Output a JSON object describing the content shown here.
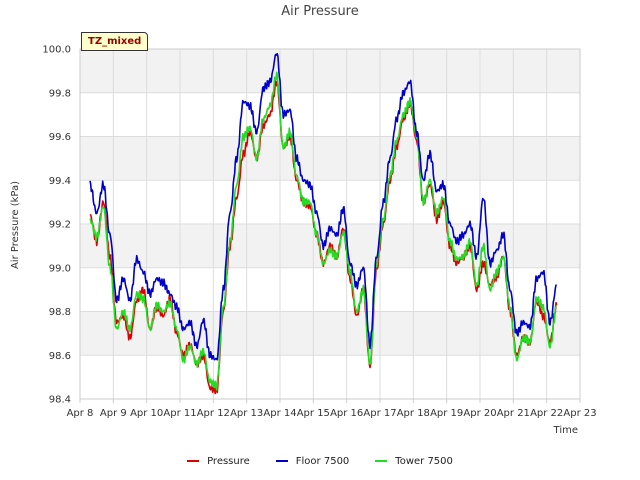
{
  "chart_data": {
    "type": "line",
    "title": "Air Pressure",
    "xlabel": "Time",
    "ylabel": "Air Pressure (kPa)",
    "ylim": [
      98.4,
      100.0
    ],
    "xlim": [
      8.0,
      23.0
    ],
    "x_ticks": [
      8,
      9,
      10,
      11,
      12,
      13,
      14,
      15,
      16,
      17,
      18,
      19,
      20,
      21,
      22,
      23
    ],
    "x_tick_labels": [
      "Apr 8",
      "Apr 9",
      "Apr 10",
      "Apr 11",
      "Apr 12",
      "Apr 13",
      "Apr 14",
      "Apr 15",
      "Apr 16",
      "Apr 17",
      "Apr 18",
      "Apr 19",
      "Apr 20",
      "Apr 21",
      "Apr 22",
      "Apr 23"
    ],
    "y_ticks": [
      98.4,
      98.6,
      98.8,
      99.0,
      99.2,
      99.4,
      99.6,
      99.8,
      100.0
    ],
    "y_tick_labels": [
      "98.4",
      "98.6",
      "98.8",
      "99.0",
      "99.2",
      "99.4",
      "99.6",
      "99.8",
      "100.0"
    ],
    "grid": true,
    "legend_position": "bottom-center",
    "annotation": "TZ_mixed",
    "x": [
      8.3,
      8.5,
      8.7,
      8.9,
      9.1,
      9.3,
      9.5,
      9.7,
      9.9,
      10.1,
      10.3,
      10.5,
      10.7,
      10.9,
      11.1,
      11.3,
      11.5,
      11.7,
      11.9,
      12.1,
      12.3,
      12.5,
      12.7,
      12.9,
      13.1,
      13.3,
      13.5,
      13.7,
      13.9,
      14.1,
      14.3,
      14.5,
      14.7,
      14.9,
      15.1,
      15.3,
      15.5,
      15.7,
      15.9,
      16.1,
      16.3,
      16.5,
      16.7,
      16.9,
      17.1,
      17.3,
      17.5,
      17.7,
      17.9,
      18.1,
      18.3,
      18.5,
      18.7,
      18.9,
      19.1,
      19.3,
      19.5,
      19.7,
      19.9,
      20.1,
      20.3,
      20.5,
      20.7,
      20.9,
      21.1,
      21.3,
      21.5,
      21.7,
      21.9,
      22.1,
      22.3
    ],
    "series": [
      {
        "name": "Pressure",
        "color": "#dd0000",
        "values": [
          99.24,
          99.12,
          99.3,
          99.05,
          98.75,
          98.78,
          98.68,
          98.85,
          98.9,
          98.72,
          98.82,
          98.78,
          98.86,
          98.7,
          98.6,
          98.65,
          98.56,
          98.6,
          98.45,
          98.44,
          98.8,
          99.1,
          99.32,
          99.52,
          99.62,
          99.5,
          99.65,
          99.7,
          99.85,
          99.55,
          99.6,
          99.4,
          99.3,
          99.28,
          99.15,
          99.02,
          99.1,
          99.05,
          99.18,
          98.95,
          98.78,
          98.9,
          98.55,
          99.0,
          99.2,
          99.4,
          99.55,
          99.68,
          99.75,
          99.58,
          99.3,
          99.38,
          99.22,
          99.3,
          99.1,
          99.02,
          99.05,
          99.1,
          98.9,
          99.02,
          98.92,
          98.96,
          99.05,
          98.8,
          98.6,
          98.68,
          98.66,
          98.85,
          98.78,
          98.66,
          98.83
        ]
      },
      {
        "name": "Floor 7500",
        "color": "#0000cc",
        "values": [
          99.38,
          99.25,
          99.38,
          99.15,
          98.85,
          98.95,
          98.85,
          99.04,
          98.98,
          98.88,
          98.95,
          98.93,
          98.88,
          98.82,
          98.72,
          98.75,
          98.64,
          98.76,
          98.6,
          98.58,
          98.9,
          99.25,
          99.5,
          99.76,
          99.74,
          99.62,
          99.82,
          99.85,
          99.98,
          99.7,
          99.72,
          99.5,
          99.4,
          99.38,
          99.25,
          99.1,
          99.18,
          99.15,
          99.27,
          99.02,
          98.92,
          99.0,
          98.65,
          99.05,
          99.3,
          99.5,
          99.68,
          99.8,
          99.85,
          99.62,
          99.4,
          99.52,
          99.35,
          99.38,
          99.2,
          99.12,
          99.15,
          99.2,
          99.05,
          99.32,
          99.02,
          99.08,
          99.15,
          98.9,
          98.7,
          98.75,
          98.73,
          98.95,
          98.98,
          98.75,
          98.92
        ]
      },
      {
        "name": "Tower 7500",
        "color": "#22dd22",
        "values": [
          99.22,
          99.14,
          99.28,
          99.0,
          98.72,
          98.8,
          98.72,
          98.88,
          98.86,
          98.72,
          98.83,
          98.8,
          98.84,
          98.72,
          98.58,
          98.64,
          98.56,
          98.62,
          98.48,
          98.46,
          98.82,
          99.12,
          99.38,
          99.6,
          99.64,
          99.5,
          99.68,
          99.74,
          99.88,
          99.55,
          99.62,
          99.42,
          99.3,
          99.3,
          99.15,
          99.02,
          99.08,
          99.05,
          99.16,
          98.98,
          98.8,
          98.9,
          98.56,
          99.02,
          99.22,
          99.42,
          99.58,
          99.7,
          99.76,
          99.6,
          99.3,
          99.4,
          99.25,
          99.32,
          99.12,
          99.04,
          99.05,
          99.12,
          98.92,
          99.1,
          98.9,
          98.98,
          99.05,
          98.82,
          98.58,
          98.68,
          98.66,
          98.86,
          98.82,
          98.64,
          98.82
        ]
      }
    ]
  }
}
